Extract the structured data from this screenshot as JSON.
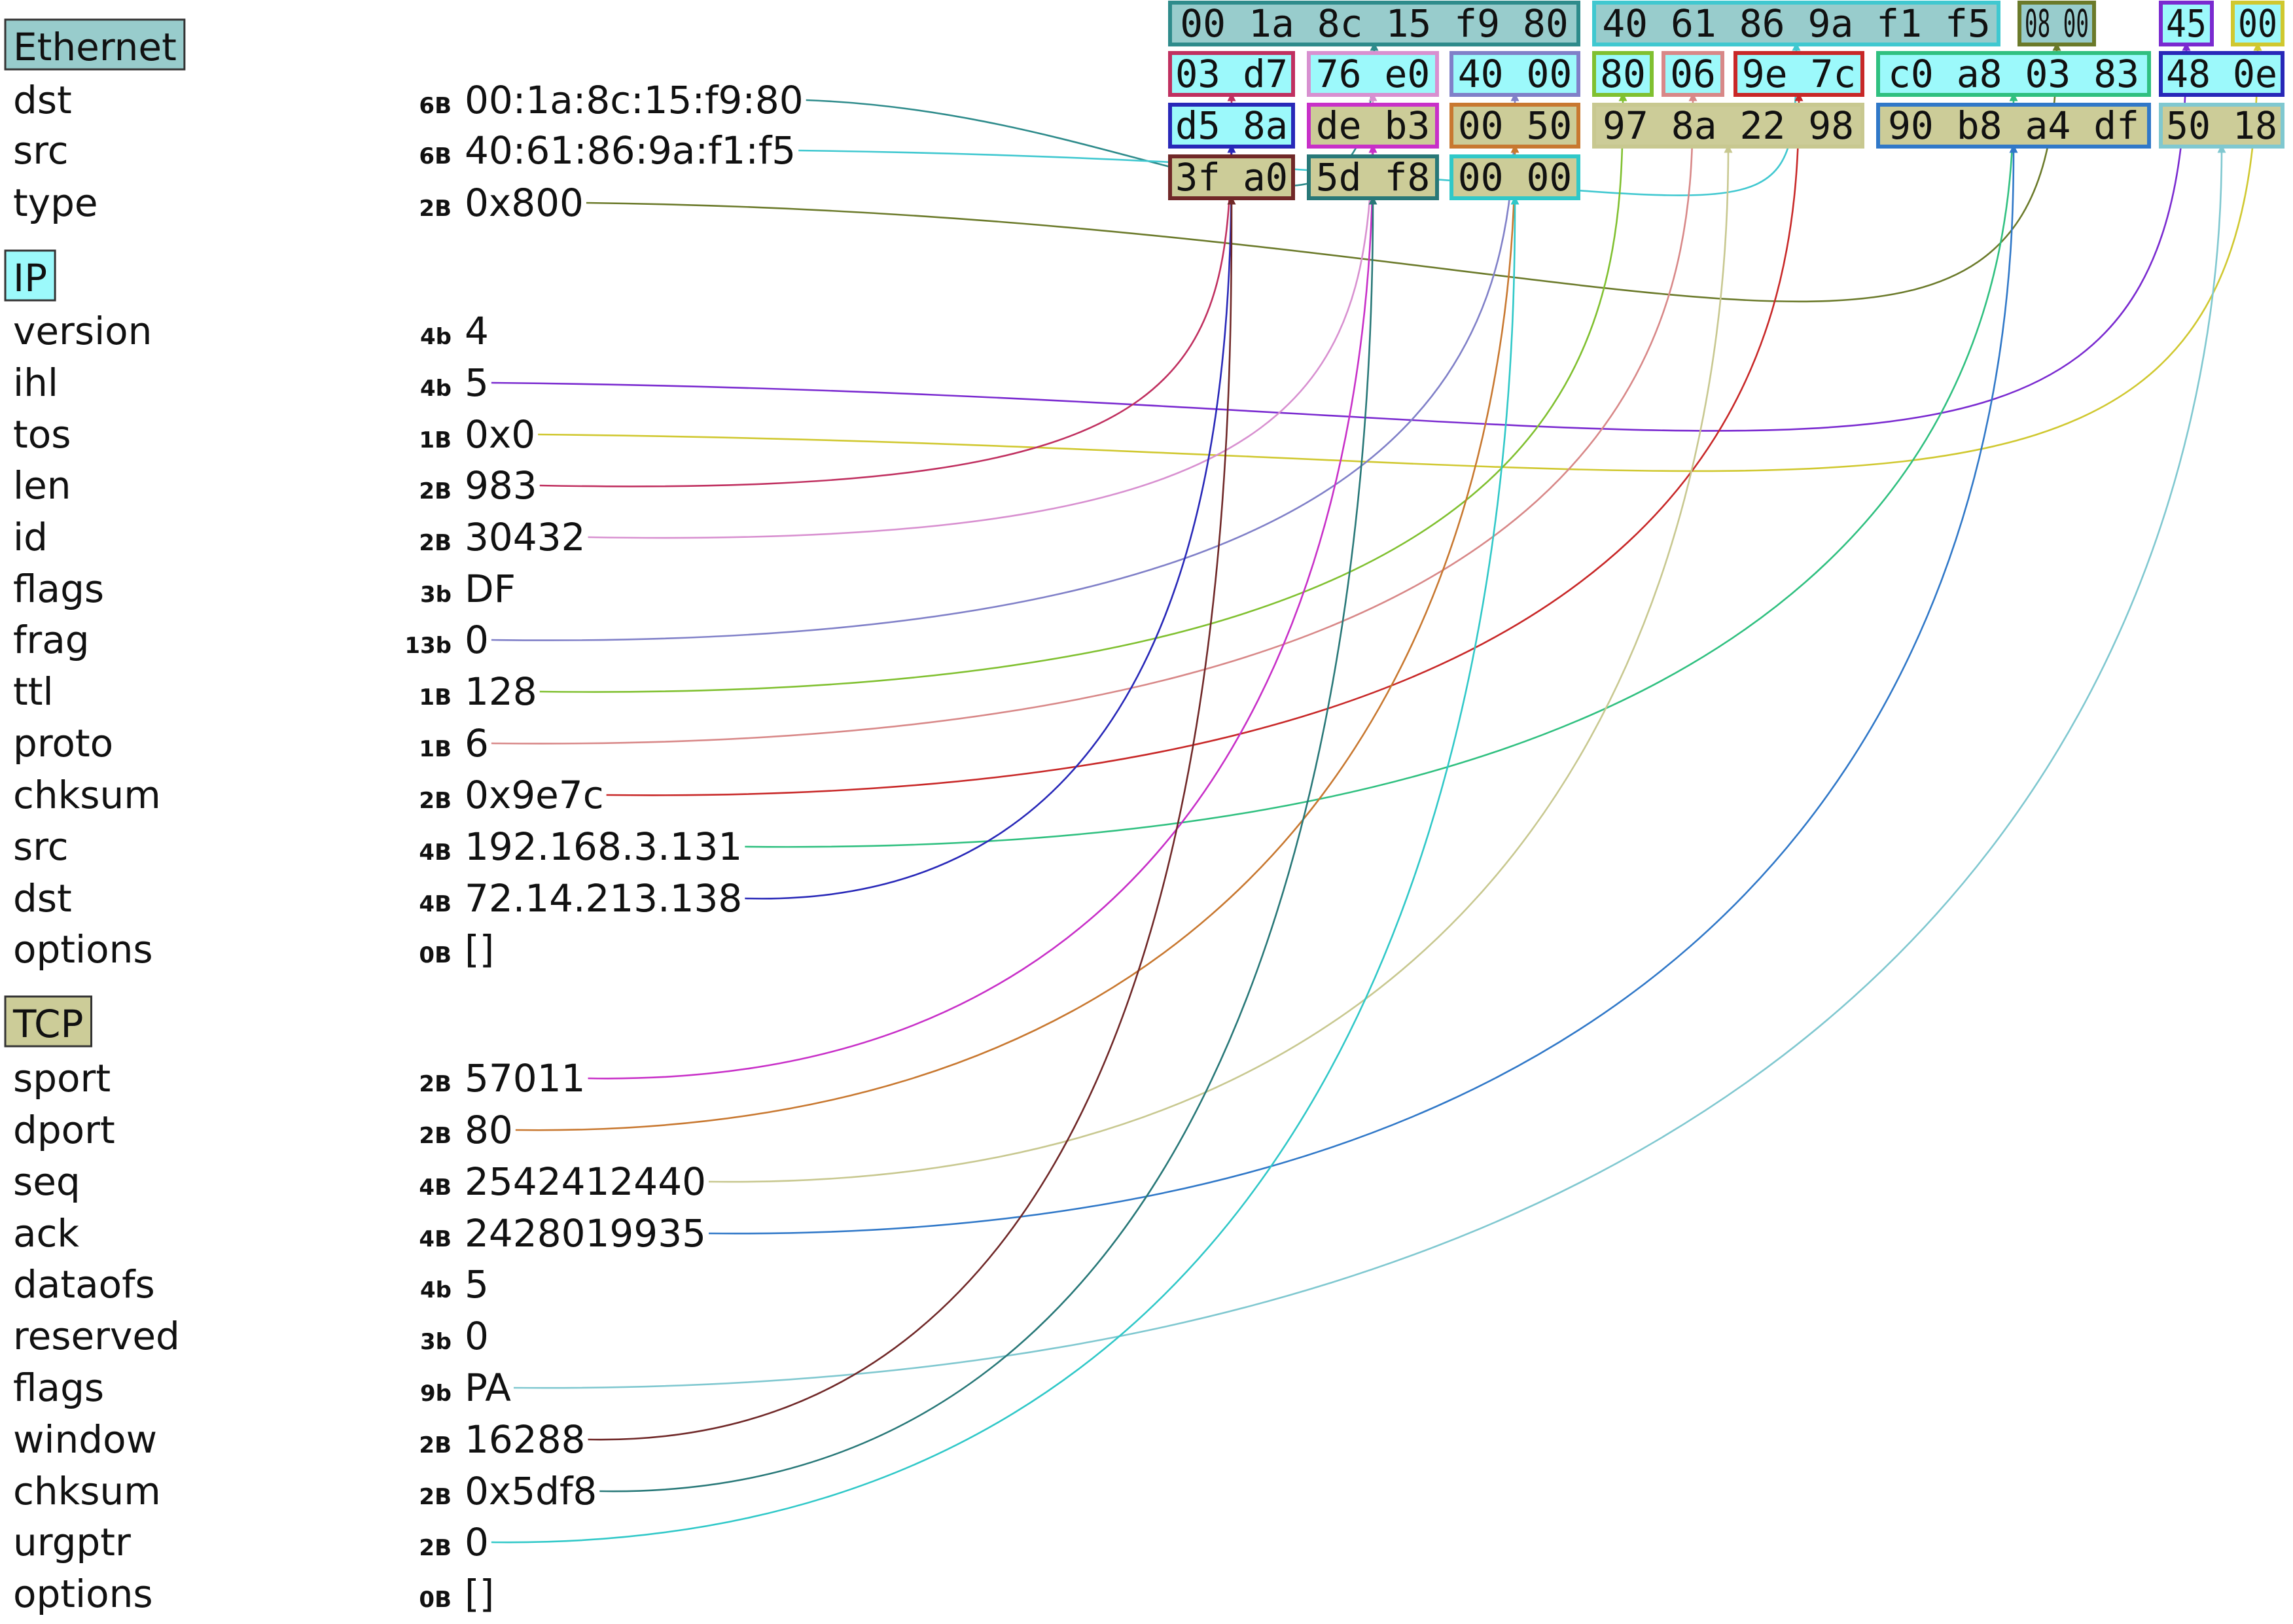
{
  "sections": [
    {
      "key": "ethernet",
      "label": "Ethernet",
      "color": "#98cccc",
      "fields": [
        {
          "name": "dst",
          "size": "6B",
          "value": "00:1a:8c:15:f9:80"
        },
        {
          "name": "src",
          "size": "6B",
          "value": "40:61:86:9a:f1:f5"
        },
        {
          "name": "type",
          "size": "2B",
          "value": "0x800"
        }
      ]
    },
    {
      "key": "ip",
      "label": "IP",
      "color": "#9cf9fb",
      "fields": [
        {
          "name": "version",
          "size": "4b",
          "value": "4"
        },
        {
          "name": "ihl",
          "size": "4b",
          "value": "5"
        },
        {
          "name": "tos",
          "size": "1B",
          "value": "0x0"
        },
        {
          "name": "len",
          "size": "2B",
          "value": "983"
        },
        {
          "name": "id",
          "size": "2B",
          "value": "30432"
        },
        {
          "name": "flags",
          "size": "3b",
          "value": "DF"
        },
        {
          "name": "frag",
          "size": "13b",
          "value": "0"
        },
        {
          "name": "ttl",
          "size": "1B",
          "value": "128"
        },
        {
          "name": "proto",
          "size": "1B",
          "value": "6"
        },
        {
          "name": "chksum",
          "size": "2B",
          "value": "0x9e7c"
        },
        {
          "name": "src",
          "size": "4B",
          "value": "192.168.3.131"
        },
        {
          "name": "dst",
          "size": "4B",
          "value": "72.14.213.138"
        },
        {
          "name": "options",
          "size": "0B",
          "value": "[]"
        }
      ]
    },
    {
      "key": "tcp",
      "label": "TCP",
      "color": "#cccc98",
      "fields": [
        {
          "name": "sport",
          "size": "2B",
          "value": "57011"
        },
        {
          "name": "dport",
          "size": "2B",
          "value": "80"
        },
        {
          "name": "seq",
          "size": "4B",
          "value": "2542412440"
        },
        {
          "name": "ack",
          "size": "4B",
          "value": "2428019935"
        },
        {
          "name": "dataofs",
          "size": "4b",
          "value": "5"
        },
        {
          "name": "reserved",
          "size": "3b",
          "value": "0"
        },
        {
          "name": "flags",
          "size": "9b",
          "value": "PA"
        },
        {
          "name": "window",
          "size": "2B",
          "value": "16288"
        },
        {
          "name": "chksum",
          "size": "2B",
          "value": "0x5df8"
        },
        {
          "name": "urgptr",
          "size": "2B",
          "value": "0"
        },
        {
          "name": "options",
          "size": "0B",
          "value": "[]"
        }
      ]
    }
  ],
  "hex_groups": [
    {
      "field": "ethernet.dst",
      "text": "00 1a 8c 15 f9 80",
      "color": "#2e8b8b",
      "fill": "#98cccc"
    },
    {
      "field": "ethernet.src",
      "text": "40 61 86 9a f1 f5",
      "color": "#40c8d0",
      "fill": "#98cccc"
    },
    {
      "field": "ethernet.type",
      "text": "08 00",
      "color": "#6b7a2a",
      "fill": "#98cccc"
    },
    {
      "field": "ip.version+ihl",
      "text": "45",
      "color": "#7a2ad0",
      "fill": "#9cf9fb"
    },
    {
      "field": "ip.tos",
      "text": "00",
      "color": "#d0c830",
      "fill": "#9cf9fb"
    },
    {
      "field": "ip.len",
      "text": "03 d7",
      "color": "#c03060",
      "fill": "#9cf9fb"
    },
    {
      "field": "ip.id",
      "text": "76 e0",
      "color": "#d890d0",
      "fill": "#9cf9fb"
    },
    {
      "field": "ip.flags+frag",
      "text": "40 00",
      "color": "#8080c8",
      "fill": "#9cf9fb"
    },
    {
      "field": "ip.ttl",
      "text": "80",
      "color": "#80c030",
      "fill": "#9cf9fb"
    },
    {
      "field": "ip.proto",
      "text": "06",
      "color": "#d88888",
      "fill": "#9cf9fb"
    },
    {
      "field": "ip.chksum",
      "text": "9e 7c",
      "color": "#c82828",
      "fill": "#9cf9fb"
    },
    {
      "field": "ip.src",
      "text": "c0 a8 03 83",
      "color": "#30c080",
      "fill": "#9cf9fb"
    },
    {
      "field": "ip.dst",
      "text": "48 0e",
      "color": "#2828b8",
      "fill": "#9cf9fb"
    },
    {
      "field": "ip.dst",
      "text": "d5 8a",
      "color": "#2828b8",
      "fill": "#9cf9fb"
    },
    {
      "field": "tcp.sport",
      "text": "de b3",
      "color": "#c830c8",
      "fill": "#cccc98"
    },
    {
      "field": "tcp.dport",
      "text": "00 50",
      "color": "#c87830",
      "fill": "#cccc98"
    },
    {
      "field": "tcp.seq",
      "text": "97 8a 22 98",
      "color": "#c8c890",
      "fill": "#cccc98"
    },
    {
      "field": "tcp.ack",
      "text": "90 b8 a4 df",
      "color": "#3078c8",
      "fill": "#cccc98"
    },
    {
      "field": "tcp.dataofs+flags",
      "text": "50 18",
      "color": "#80c8d0",
      "fill": "#cccc98"
    },
    {
      "field": "tcp.window",
      "text": "3f a0",
      "color": "#702828",
      "fill": "#cccc98"
    },
    {
      "field": "tcp.chksum",
      "text": "5d f8",
      "color": "#287878",
      "fill": "#cccc98"
    },
    {
      "field": "tcp.urgptr",
      "text": "00 00",
      "color": "#30c8c8",
      "fill": "#cccc98"
    }
  ]
}
